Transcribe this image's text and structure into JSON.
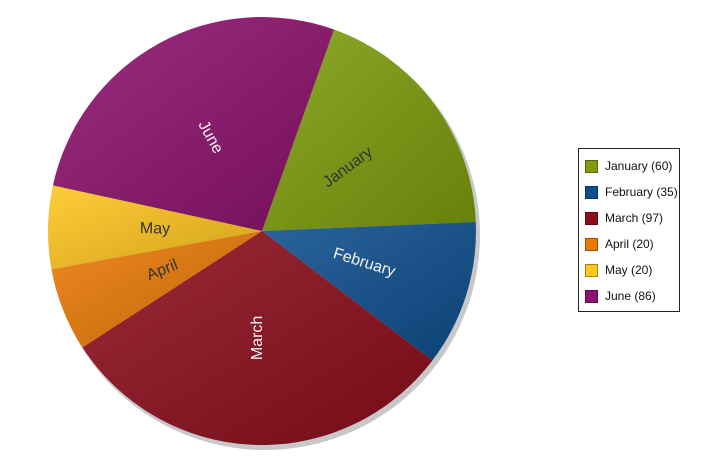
{
  "chart_data": {
    "type": "pie",
    "categories": [
      "January",
      "February",
      "March",
      "April",
      "May",
      "June"
    ],
    "values": [
      60,
      35,
      97,
      20,
      20,
      86
    ],
    "colors": [
      "#7e9c0c",
      "#0d4f8e",
      "#8c0e1c",
      "#ea7a06",
      "#ffc61e",
      "#8d116e"
    ],
    "slice_labels": [
      "January",
      "February",
      "March",
      "April",
      "May",
      "June"
    ],
    "legend_labels": [
      "January (60)",
      "February (35)",
      "March (97)",
      "April (20)",
      "May (20)",
      "June (86)"
    ],
    "legend_position": "right"
  }
}
